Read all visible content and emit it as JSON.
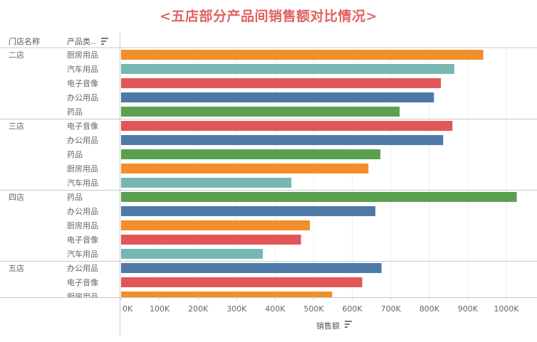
{
  "chart_data": {
    "type": "bar",
    "orientation": "horizontal",
    "title": "<五店部分产品间销售额对比情况>",
    "row_headers": [
      "门店名称",
      "产品类.."
    ],
    "xlabel": "销售额",
    "xlim": [
      0,
      1050000
    ],
    "x_ticks": [
      0,
      100000,
      200000,
      300000,
      400000,
      500000,
      600000,
      700000,
      800000,
      900000,
      1000000
    ],
    "x_tick_labels": [
      "0K",
      "100K",
      "200K",
      "300K",
      "400K",
      "500K",
      "600K",
      "700K",
      "800K",
      "900K",
      "1000K"
    ],
    "grid": true,
    "colors": {
      "厨房用品": "#f28e2b",
      "汽车用品": "#76b7b2",
      "电子音像": "#e15759",
      "办公用品": "#4e79a7",
      "药品": "#59a14f"
    },
    "groups": [
      {
        "store": "二店",
        "rows": [
          {
            "category": "厨房用品",
            "value": 940000
          },
          {
            "category": "汽车用品",
            "value": 865000
          },
          {
            "category": "电子音像",
            "value": 830000
          },
          {
            "category": "办公用品",
            "value": 812000
          },
          {
            "category": "药品",
            "value": 723000
          }
        ]
      },
      {
        "store": "三店",
        "rows": [
          {
            "category": "电子音像",
            "value": 860000
          },
          {
            "category": "办公用品",
            "value": 836000
          },
          {
            "category": "药品",
            "value": 673000
          },
          {
            "category": "厨房用品",
            "value": 642000
          },
          {
            "category": "汽车用品",
            "value": 442000
          }
        ]
      },
      {
        "store": "四店",
        "rows": [
          {
            "category": "药品",
            "value": 1027000
          },
          {
            "category": "办公用品",
            "value": 660000
          },
          {
            "category": "厨房用品",
            "value": 490000
          },
          {
            "category": "电子音像",
            "value": 467000
          },
          {
            "category": "汽车用品",
            "value": 368000
          }
        ]
      },
      {
        "store": "五店",
        "rows": [
          {
            "category": "办公用品",
            "value": 676000
          },
          {
            "category": "电子音像",
            "value": 626000
          },
          {
            "category": "厨房用品",
            "value": 548000
          }
        ]
      }
    ]
  }
}
